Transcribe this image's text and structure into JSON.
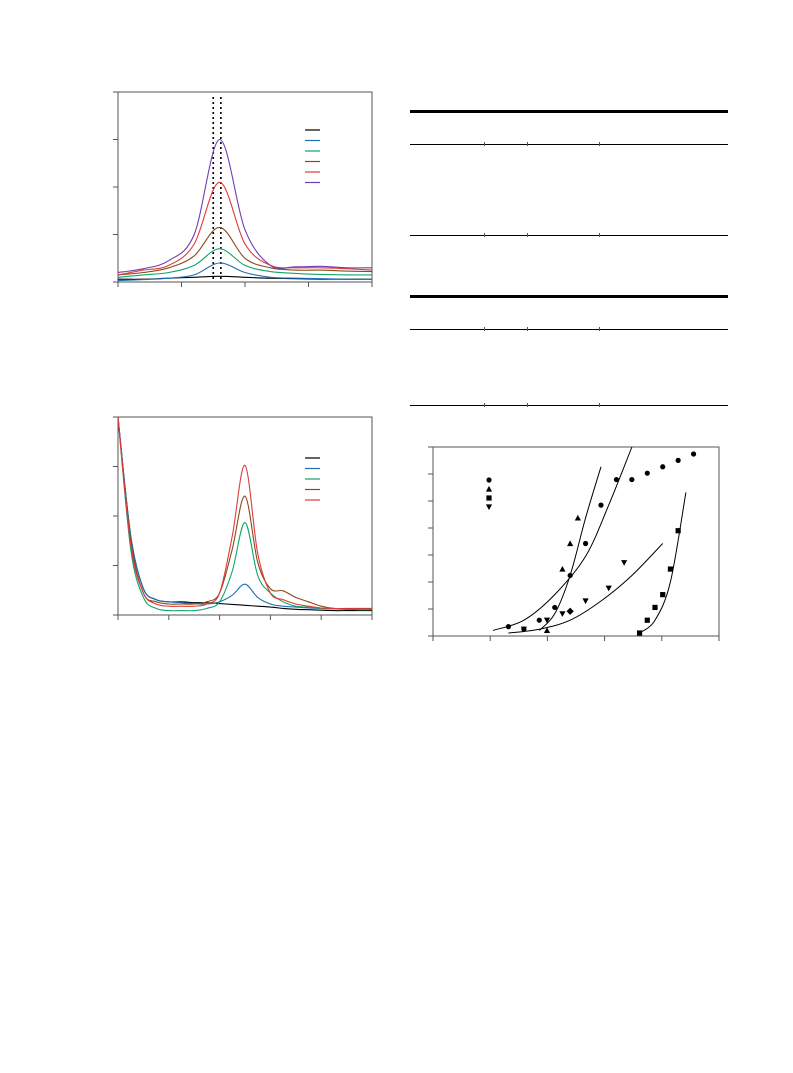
{
  "chart_data": [
    {
      "type": "line",
      "legend_position": "top-right",
      "series_colors": [
        "#000000",
        "#1f6fb2",
        "#11a36a",
        "#8a4a1c",
        "#e03a3a",
        "#6a3fb0"
      ],
      "x": [
        0,
        10,
        20,
        30,
        40,
        50,
        60,
        70,
        80,
        90,
        100
      ],
      "peak_x": 40,
      "reference_lines_x": [
        37.5,
        40.5
      ],
      "series": [
        {
          "values": [
            0.6,
            0.6,
            0.8,
            1.0,
            1.2,
            1.0,
            0.8,
            0.7,
            0.6,
            0.6,
            0.6
          ]
        },
        {
          "values": [
            0.3,
            0.5,
            0.8,
            1.5,
            4.0,
            2.0,
            1.0,
            0.8,
            0.7,
            0.6,
            0.6
          ]
        },
        {
          "values": [
            1.0,
            1.5,
            2.0,
            3.5,
            7.0,
            3.5,
            2.2,
            1.8,
            1.6,
            1.5,
            1.5
          ]
        },
        {
          "values": [
            1.5,
            2.0,
            3.0,
            5.5,
            11.5,
            5.0,
            3.0,
            2.5,
            2.5,
            2.3,
            2.2
          ]
        },
        {
          "values": [
            1.5,
            2.5,
            3.5,
            8.0,
            21.0,
            8.0,
            3.5,
            3.0,
            3.0,
            2.8,
            2.5
          ]
        },
        {
          "values": [
            2.0,
            2.8,
            4.5,
            10.0,
            30.0,
            11.0,
            3.5,
            3.2,
            3.3,
            3.0,
            3.0
          ]
        }
      ],
      "ylim": [
        0,
        40
      ],
      "xlim": [
        0,
        100
      ]
    },
    {
      "type": "line",
      "legend_position": "top-right",
      "series_colors": [
        "#000000",
        "#1f6fb2",
        "#11a36a",
        "#8a4a1c",
        "#e03a3a"
      ],
      "x": [
        0,
        5,
        10,
        15,
        20,
        25,
        30,
        35,
        40,
        45,
        50,
        55,
        60,
        65,
        70,
        75,
        80,
        85,
        90,
        95,
        100
      ],
      "series": [
        {
          "values": [
            45,
            18,
            6,
            3.5,
            3.0,
            3.0,
            2.8,
            2.8,
            2.6,
            2.4,
            2.2,
            2.0,
            1.8,
            1.5,
            1.3,
            1.2,
            1.1,
            1.0,
            1.0,
            1.0,
            1.0
          ]
        },
        {
          "values": [
            45,
            18,
            6,
            3.5,
            3.0,
            2.8,
            2.6,
            2.5,
            3.0,
            4.5,
            7.0,
            4.0,
            2.5,
            2.0,
            1.8,
            1.6,
            1.5,
            1.4,
            1.3,
            1.2,
            1.2
          ]
        },
        {
          "values": [
            45,
            15,
            4,
            1.5,
            1.0,
            1.0,
            1.0,
            1.5,
            3.0,
            10.0,
            21.0,
            9.0,
            5.0,
            3.0,
            2.0,
            1.8,
            1.5,
            1.4,
            1.3,
            1.2,
            1.2
          ]
        },
        {
          "values": [
            45,
            17,
            5,
            3.0,
            2.5,
            2.5,
            2.5,
            3.0,
            5.0,
            15.0,
            27.0,
            12.0,
            6.0,
            5.5,
            4.0,
            3.0,
            2.0,
            1.5,
            1.5,
            1.5,
            1.5
          ]
        },
        {
          "values": [
            45,
            16,
            5,
            2.5,
            2.0,
            2.0,
            2.0,
            2.5,
            5.0,
            18.0,
            34.0,
            14.0,
            5.0,
            3.5,
            2.5,
            2.0,
            1.6,
            1.5,
            1.4,
            1.4,
            1.4
          ]
        }
      ],
      "ylim": [
        0,
        45
      ],
      "xlim": [
        0,
        100
      ]
    },
    {
      "type": "scatter",
      "legend_position": "top-left",
      "marker_color": "#000000",
      "series": [
        {
          "marker": "circle",
          "x": [
            2,
            4,
            6,
            8,
            10,
            12,
            14,
            16,
            18,
            20,
            22,
            24,
            26
          ],
          "y": [
            0.5,
            0.3,
            1.0,
            2.0,
            4.5,
            7.0,
            10.0,
            12.0,
            12.0,
            12.5,
            13.0,
            13.5,
            14.0
          ]
        },
        {
          "marker": "triangle-up",
          "x": [
            7,
            9,
            10,
            11
          ],
          "y": [
            0.2,
            5.0,
            7.0,
            9.0
          ]
        },
        {
          "marker": "square",
          "x": [
            19,
            20,
            21,
            22,
            23,
            24
          ],
          "y": [
            0.0,
            1.0,
            2.0,
            3.0,
            5.0,
            8.0
          ]
        },
        {
          "marker": "triangle-down",
          "x": [
            4,
            7,
            9,
            12,
            15,
            17
          ],
          "y": [
            0.3,
            1.0,
            1.5,
            2.5,
            3.5,
            5.5
          ]
        },
        {
          "marker": "diamond",
          "x": [
            10
          ],
          "y": [
            1.7
          ]
        }
      ],
      "fits": [
        {
          "x": [
            0,
            4,
            8,
            12,
            15,
            18
          ],
          "y": [
            0.2,
            1.0,
            3.0,
            6.0,
            10.0,
            20.0
          ]
        },
        {
          "x": [
            6,
            8,
            10,
            12,
            14
          ],
          "y": [
            0.2,
            1.5,
            4.5,
            9.0,
            13.0
          ]
        },
        {
          "x": [
            2,
            6,
            10,
            14,
            18,
            22
          ],
          "y": [
            0.0,
            0.3,
            1.0,
            2.5,
            4.5,
            7.0
          ]
        },
        {
          "x": [
            19,
            21,
            23,
            25
          ],
          "y": [
            0.0,
            1.0,
            4.0,
            11.0
          ]
        }
      ],
      "xlim": [
        0,
        28
      ],
      "ylim": [
        0,
        14
      ]
    }
  ]
}
